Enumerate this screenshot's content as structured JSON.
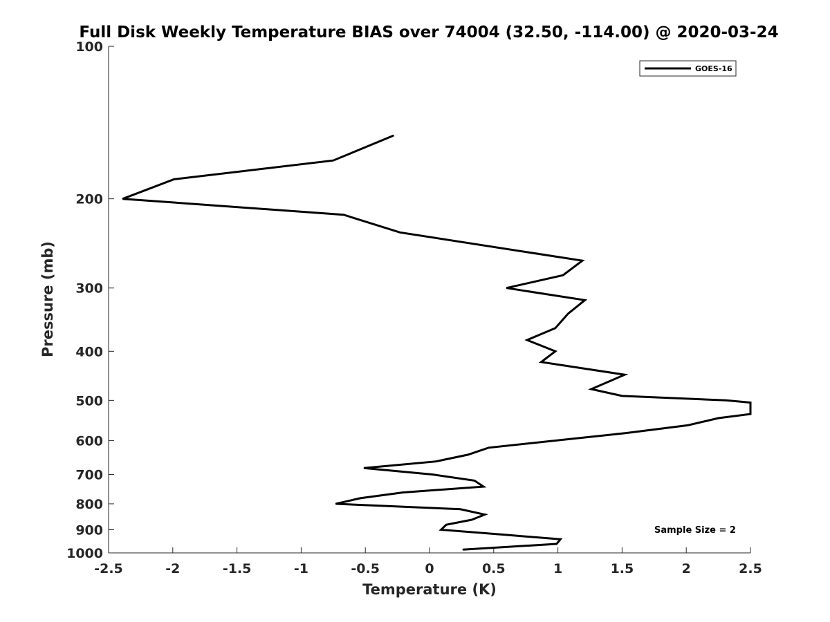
{
  "chart_data": {
    "type": "line",
    "title": "Full Disk Weekly Temperature BIAS over 74004 (32.50, -114.00) @ 2020-03-24",
    "xlabel": "Temperature (K)",
    "ylabel": "Pressure (mb)",
    "xlim": [
      -2.5,
      2.5
    ],
    "ylim": [
      100,
      1000
    ],
    "y_scale": "log",
    "y_reversed": true,
    "x_ticks": [
      -2.5,
      -2,
      -1.5,
      -1,
      -0.5,
      0,
      0.5,
      1,
      1.5,
      2,
      2.5
    ],
    "x_tick_labels": [
      "-2.5",
      "-2",
      "-1.5",
      "-1",
      "-0.5",
      "0",
      "0.5",
      "1",
      "1.5",
      "2",
      "2.5"
    ],
    "y_ticks": [
      100,
      200,
      300,
      400,
      500,
      600,
      700,
      800,
      900,
      1000
    ],
    "y_tick_labels": [
      "100",
      "200",
      "300",
      "400",
      "500",
      "600",
      "700",
      "800",
      "900",
      "1000"
    ],
    "grid": false,
    "legend_position": "top-right",
    "annotation": "Sample Size = 2",
    "line_color": "#000000",
    "series": [
      {
        "name": "GOES-16",
        "points": [
          {
            "x": -0.28,
            "p": 150
          },
          {
            "x": -0.75,
            "p": 168
          },
          {
            "x": -1.99,
            "p": 183
          },
          {
            "x": -2.39,
            "p": 200
          },
          {
            "x": -0.67,
            "p": 215
          },
          {
            "x": -0.23,
            "p": 233
          },
          {
            "x": 1.19,
            "p": 265
          },
          {
            "x": 1.04,
            "p": 283
          },
          {
            "x": 0.6,
            "p": 300
          },
          {
            "x": 1.21,
            "p": 317
          },
          {
            "x": 1.08,
            "p": 337
          },
          {
            "x": 0.98,
            "p": 360
          },
          {
            "x": 0.76,
            "p": 380
          },
          {
            "x": 0.98,
            "p": 400
          },
          {
            "x": 0.87,
            "p": 420
          },
          {
            "x": 1.52,
            "p": 445
          },
          {
            "x": 1.26,
            "p": 475
          },
          {
            "x": 1.5,
            "p": 490
          },
          {
            "x": 2.31,
            "p": 500
          },
          {
            "x": 2.5,
            "p": 505
          },
          {
            "x": 2.5,
            "p": 532
          },
          {
            "x": 2.25,
            "p": 542
          },
          {
            "x": 2.01,
            "p": 560
          },
          {
            "x": 1.53,
            "p": 580
          },
          {
            "x": 0.46,
            "p": 620
          },
          {
            "x": 0.3,
            "p": 640
          },
          {
            "x": 0.05,
            "p": 660
          },
          {
            "x": -0.51,
            "p": 680
          },
          {
            "x": 0.02,
            "p": 700
          },
          {
            "x": 0.35,
            "p": 720
          },
          {
            "x": 0.42,
            "p": 740
          },
          {
            "x": -0.21,
            "p": 760
          },
          {
            "x": -0.54,
            "p": 780
          },
          {
            "x": -0.73,
            "p": 800
          },
          {
            "x": 0.24,
            "p": 820
          },
          {
            "x": 0.43,
            "p": 840
          },
          {
            "x": 0.33,
            "p": 860
          },
          {
            "x": 0.13,
            "p": 880
          },
          {
            "x": 0.09,
            "p": 900
          },
          {
            "x": 0.57,
            "p": 920
          },
          {
            "x": 1.02,
            "p": 940
          },
          {
            "x": 0.99,
            "p": 960
          },
          {
            "x": 0.26,
            "p": 985
          }
        ]
      }
    ]
  }
}
